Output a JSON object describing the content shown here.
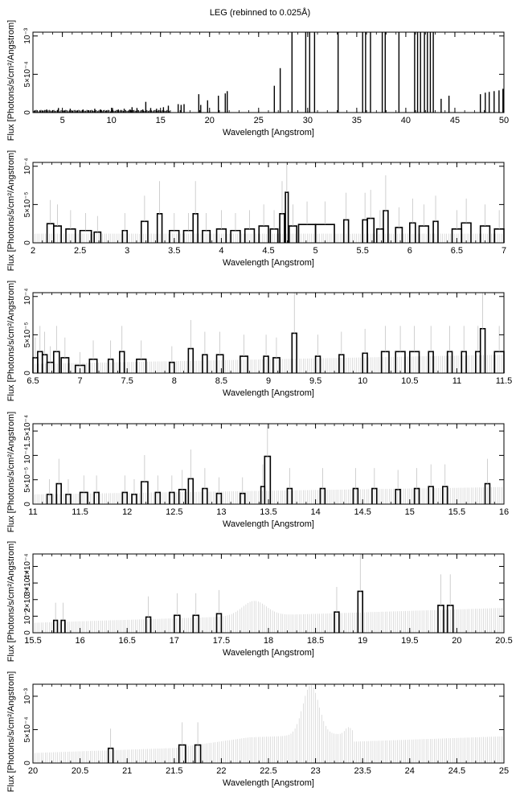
{
  "figure_title": "LEG (rebinned to 0.025Å)",
  "chart_data": [
    {
      "type": "line",
      "xlabel": "Wavelength [Angstrom]",
      "ylabel": "Flux [Photons/s/cm²/Angstrom]",
      "xlim": [
        2,
        50
      ],
      "ylim": [
        0,
        0.00105
      ],
      "xticks": [
        5,
        10,
        15,
        20,
        25,
        30,
        35,
        40,
        45,
        50
      ],
      "xticklabels": [
        "5",
        "10",
        "15",
        "20",
        "25",
        "30",
        "35",
        "40",
        "45",
        "50"
      ],
      "yticks": [
        0,
        0.0005,
        0.001
      ],
      "yticklabels": [
        "0",
        "5×10⁻⁴",
        "10⁻³"
      ],
      "spikes": [
        [
          2.2,
          3e-05
        ],
        [
          2.8,
          2e-05
        ],
        [
          3.4,
          4e-05
        ],
        [
          4.0,
          3e-05
        ],
        [
          4.6,
          6e-05
        ],
        [
          5.2,
          3e-05
        ],
        [
          5.8,
          5e-05
        ],
        [
          6.5,
          3e-05
        ],
        [
          7.1,
          4e-05
        ],
        [
          7.7,
          3e-05
        ],
        [
          8.3,
          5e-05
        ],
        [
          8.9,
          4e-05
        ],
        [
          9.5,
          3e-05
        ],
        [
          10.1,
          6e-05
        ],
        [
          10.7,
          4e-05
        ],
        [
          11.3,
          5e-05
        ],
        [
          11.9,
          4e-05
        ],
        [
          12.1,
          7e-05
        ],
        [
          12.6,
          6e-05
        ],
        [
          13.2,
          4e-05
        ],
        [
          13.5,
          0.00014
        ],
        [
          14.0,
          6e-05
        ],
        [
          14.6,
          5e-05
        ],
        [
          15.3,
          7e-05
        ],
        [
          15.8,
          9e-05
        ],
        [
          16.8,
          0.00011
        ],
        [
          17.1,
          0.0001
        ],
        [
          17.4,
          0.00011
        ],
        [
          18.9,
          0.00024
        ],
        [
          19.1,
          0.0001
        ],
        [
          19.8,
          0.00016
        ],
        [
          20.9,
          0.00022
        ],
        [
          21.6,
          0.00025
        ],
        [
          21.8,
          0.00028
        ],
        [
          26.6,
          0.00035
        ],
        [
          27.2,
          0.00058
        ],
        [
          28.4,
          0.00105
        ],
        [
          29.8,
          0.00105
        ],
        [
          30.2,
          0.00105
        ],
        [
          30.7,
          0.00105
        ],
        [
          33.1,
          0.00105
        ],
        [
          35.6,
          0.00105
        ],
        [
          35.9,
          0.00105
        ],
        [
          36.4,
          0.00105
        ],
        [
          37.6,
          0.00105
        ],
        [
          37.9,
          0.00105
        ],
        [
          39.3,
          0.00105
        ],
        [
          40.9,
          0.00105
        ],
        [
          41.2,
          0.00105
        ],
        [
          41.5,
          0.00105
        ],
        [
          41.9,
          0.00105
        ],
        [
          42.2,
          0.00105
        ],
        [
          42.5,
          0.00105
        ],
        [
          42.8,
          0.00105
        ],
        [
          43.6,
          0.00018
        ],
        [
          44.4,
          0.00022
        ],
        [
          47.6,
          0.00024
        ],
        [
          48.1,
          0.00026
        ],
        [
          48.5,
          0.00027
        ],
        [
          49.0,
          0.00028
        ],
        [
          49.5,
          0.00029
        ],
        [
          49.9,
          0.00031
        ]
      ]
    },
    {
      "type": "line",
      "xlabel": "Wavelength [Angstrom]",
      "ylabel": "Flux [Photons/s/cm²/Angstrom]",
      "xlim": [
        2,
        7
      ],
      "ylim": [
        0,
        0.000105
      ],
      "xticks": [
        2,
        2.5,
        3,
        3.5,
        4,
        4.5,
        5,
        5.5,
        6,
        6.5,
        7
      ],
      "xticklabels": [
        "2",
        "2.5",
        "3",
        "3.5",
        "4",
        "4.5",
        "5",
        "5.5",
        "6",
        "6.5",
        "7"
      ],
      "yticks": [
        0,
        5e-05,
        0.0001
      ],
      "yticklabels": [
        "0",
        "5×10⁻⁵",
        "10⁻⁴"
      ],
      "bins": [
        [
          2.15,
          2.22,
          2.5e-05
        ],
        [
          2.22,
          2.3,
          2.2e-05
        ],
        [
          2.35,
          2.45,
          1.8e-05
        ],
        [
          2.5,
          2.62,
          1.6e-05
        ],
        [
          2.65,
          2.72,
          1.4e-05
        ],
        [
          2.95,
          3.0,
          1.6e-05
        ],
        [
          3.15,
          3.22,
          2.8e-05
        ],
        [
          3.32,
          3.37,
          3.8e-05
        ],
        [
          3.45,
          3.55,
          1.6e-05
        ],
        [
          3.6,
          3.7,
          1.6e-05
        ],
        [
          3.7,
          3.75,
          3.8e-05
        ],
        [
          3.8,
          3.88,
          1.6e-05
        ],
        [
          3.95,
          4.05,
          1.8e-05
        ],
        [
          4.1,
          4.2,
          1.6e-05
        ],
        [
          4.25,
          4.35,
          1.8e-05
        ],
        [
          4.4,
          4.5,
          2.2e-05
        ],
        [
          4.52,
          4.6,
          1.8e-05
        ],
        [
          4.62,
          4.67,
          3.8e-05
        ],
        [
          4.68,
          4.71,
          6.6e-05
        ],
        [
          4.72,
          4.8,
          2.2e-05
        ],
        [
          4.82,
          5.0,
          2.4e-05
        ],
        [
          5.0,
          5.2,
          2.4e-05
        ],
        [
          5.3,
          5.35,
          3e-05
        ],
        [
          5.5,
          5.55,
          3e-05
        ],
        [
          5.55,
          5.62,
          3.2e-05
        ],
        [
          5.65,
          5.72,
          1.8e-05
        ],
        [
          5.72,
          5.77,
          4.2e-05
        ],
        [
          5.85,
          5.92,
          2e-05
        ],
        [
          6.0,
          6.06,
          2.6e-05
        ],
        [
          6.1,
          6.2,
          2.2e-05
        ],
        [
          6.25,
          6.3,
          2.8e-05
        ],
        [
          6.45,
          6.55,
          1.8e-05
        ],
        [
          6.55,
          6.65,
          2.6e-05
        ],
        [
          6.75,
          6.85,
          2.2e-05
        ],
        [
          6.9,
          7.0,
          1.8e-05
        ]
      ]
    },
    {
      "type": "line",
      "xlabel": "Wavelength [Angstrom]",
      "ylabel": "Flux [Photons/s/cm²/Angstrom]",
      "xlim": [
        6.5,
        11.5
      ],
      "ylim": [
        0,
        0.000105
      ],
      "xticks": [
        6.5,
        7,
        7.5,
        8,
        8.5,
        9,
        9.5,
        10,
        10.5,
        11,
        11.5
      ],
      "xticklabels": [
        "6.5",
        "7",
        "7.5",
        "8",
        "8.5",
        "9",
        "9.5",
        "10",
        "10.5",
        "11",
        "11.5"
      ],
      "yticks": [
        0,
        5e-05,
        0.0001
      ],
      "yticklabels": [
        "0",
        "5×10⁻⁵",
        "10⁻⁴"
      ],
      "bins": [
        [
          6.5,
          6.55,
          2e-05
        ],
        [
          6.55,
          6.6,
          2.8e-05
        ],
        [
          6.6,
          6.65,
          2.4e-05
        ],
        [
          6.65,
          6.72,
          1.4e-05
        ],
        [
          6.72,
          6.78,
          2.8e-05
        ],
        [
          6.8,
          6.88,
          2e-05
        ],
        [
          6.95,
          7.05,
          1e-05
        ],
        [
          7.1,
          7.18,
          1.8e-05
        ],
        [
          7.3,
          7.35,
          1.8e-05
        ],
        [
          7.42,
          7.47,
          2.8e-05
        ],
        [
          7.6,
          7.7,
          1.8e-05
        ],
        [
          7.95,
          8.0,
          1.4e-05
        ],
        [
          8.15,
          8.2,
          3.2e-05
        ],
        [
          8.3,
          8.35,
          2.4e-05
        ],
        [
          8.45,
          8.52,
          2.4e-05
        ],
        [
          8.7,
          8.78,
          2.2e-05
        ],
        [
          8.95,
          9.0,
          2.2e-05
        ],
        [
          9.05,
          9.12,
          2e-05
        ],
        [
          9.25,
          9.3,
          5.2e-05
        ],
        [
          9.5,
          9.55,
          2.2e-05
        ],
        [
          9.75,
          9.8,
          2.4e-05
        ],
        [
          10.0,
          10.05,
          2.6e-05
        ],
        [
          10.2,
          10.28,
          2.8e-05
        ],
        [
          10.35,
          10.45,
          2.8e-05
        ],
        [
          10.5,
          10.6,
          2.8e-05
        ],
        [
          10.7,
          10.75,
          2.8e-05
        ],
        [
          10.9,
          10.95,
          2.8e-05
        ],
        [
          11.05,
          11.1,
          2.8e-05
        ],
        [
          11.2,
          11.25,
          2.8e-05
        ],
        [
          11.25,
          11.3,
          5.8e-05
        ],
        [
          11.4,
          11.5,
          2.8e-05
        ]
      ]
    },
    {
      "type": "line",
      "xlabel": "Wavelength [Angstrom]",
      "ylabel": "Flux [Photons/s/cm²/Angstrom]",
      "xlim": [
        11,
        16
      ],
      "ylim": [
        0,
        0.000165
      ],
      "xticks": [
        11,
        11.5,
        12,
        12.5,
        13,
        13.5,
        14,
        14.5,
        15,
        15.5,
        16
      ],
      "xticklabels": [
        "11",
        "11.5",
        "12",
        "12.5",
        "13",
        "13.5",
        "14",
        "14.5",
        "15",
        "15.5",
        "16"
      ],
      "yticks": [
        0,
        5e-05,
        0.0001,
        0.00015
      ],
      "yticklabels": [
        "0",
        "5×10⁻⁵",
        "10⁻⁴",
        "1.5×10⁻⁴"
      ],
      "bins": [
        [
          11.15,
          11.2,
          2e-05
        ],
        [
          11.25,
          11.3,
          4.2e-05
        ],
        [
          11.35,
          11.4,
          2e-05
        ],
        [
          11.5,
          11.58,
          2.4e-05
        ],
        [
          11.65,
          11.7,
          2.4e-05
        ],
        [
          11.95,
          12.0,
          2.4e-05
        ],
        [
          12.05,
          12.1,
          2e-05
        ],
        [
          12.15,
          12.22,
          4.6e-05
        ],
        [
          12.3,
          12.35,
          2.4e-05
        ],
        [
          12.45,
          12.5,
          2.4e-05
        ],
        [
          12.55,
          12.62,
          3e-05
        ],
        [
          12.65,
          12.7,
          5.2e-05
        ],
        [
          12.8,
          12.85,
          3.2e-05
        ],
        [
          12.95,
          13.0,
          2.2e-05
        ],
        [
          13.2,
          13.25,
          2.2e-05
        ],
        [
          13.42,
          13.46,
          3.6e-05
        ],
        [
          13.46,
          13.52,
          9.8e-05
        ],
        [
          13.7,
          13.75,
          3.2e-05
        ],
        [
          14.05,
          14.1,
          3.2e-05
        ],
        [
          14.4,
          14.45,
          3.2e-05
        ],
        [
          14.6,
          14.65,
          3.2e-05
        ],
        [
          14.85,
          14.9,
          3e-05
        ],
        [
          15.05,
          15.1,
          3.2e-05
        ],
        [
          15.2,
          15.25,
          3.6e-05
        ],
        [
          15.35,
          15.4,
          3.6e-05
        ],
        [
          15.8,
          15.85,
          4.2e-05
        ]
      ]
    },
    {
      "type": "line",
      "xlabel": "Wavelength [Angstrom]",
      "ylabel": "Flux [Photons/s/cm²/Angstrom]",
      "xlim": [
        15.5,
        20.5
      ],
      "ylim": [
        0,
        0.000475
      ],
      "xticks": [
        15.5,
        16,
        16.5,
        17,
        17.5,
        18,
        18.5,
        19,
        19.5,
        20,
        20.5
      ],
      "xticklabels": [
        "15.5",
        "16",
        "16.5",
        "17",
        "17.5",
        "18",
        "18.5",
        "19",
        "19.5",
        "20",
        "20.5"
      ],
      "yticks": [
        0,
        0.0001,
        0.0002,
        0.0003,
        0.0004
      ],
      "yticklabels": [
        "0",
        "10⁻⁴",
        "2×10⁻⁴",
        "3×10⁻⁴",
        "4×10⁻⁴"
      ],
      "bins": [
        [
          15.72,
          15.76,
          7.5e-05
        ],
        [
          15.8,
          15.84,
          7.5e-05
        ],
        [
          16.7,
          16.75,
          9.5e-05
        ],
        [
          17.0,
          17.06,
          0.000105
        ],
        [
          17.2,
          17.26,
          0.000105
        ],
        [
          17.45,
          17.5,
          0.000115
        ],
        [
          18.7,
          18.75,
          0.000125
        ],
        [
          18.95,
          19.0,
          0.00025
        ],
        [
          19.8,
          19.86,
          0.000165
        ],
        [
          19.9,
          19.96,
          0.000165
        ]
      ]
    },
    {
      "type": "line",
      "xlabel": "Wavelength [Angstrom]",
      "ylabel": "Flux [Photons/s/cm²/Angstrom]",
      "xlim": [
        20,
        25
      ],
      "ylim": [
        0,
        0.00118
      ],
      "xticks": [
        20,
        20.5,
        21,
        21.5,
        22,
        22.5,
        23,
        23.5,
        24,
        24.5,
        25
      ],
      "xticklabels": [
        "20",
        "20.5",
        "21",
        "21.5",
        "22",
        "22.5",
        "23",
        "23.5",
        "24",
        "24.5",
        "25"
      ],
      "yticks": [
        0,
        0.0005,
        0.001
      ],
      "yticklabels": [
        "0",
        "5×10⁻⁴",
        "10⁻³"
      ],
      "bins": [
        [
          20.8,
          20.85,
          0.00022
        ],
        [
          21.55,
          21.62,
          0.00027
        ],
        [
          21.72,
          21.78,
          0.00027
        ]
      ]
    }
  ]
}
